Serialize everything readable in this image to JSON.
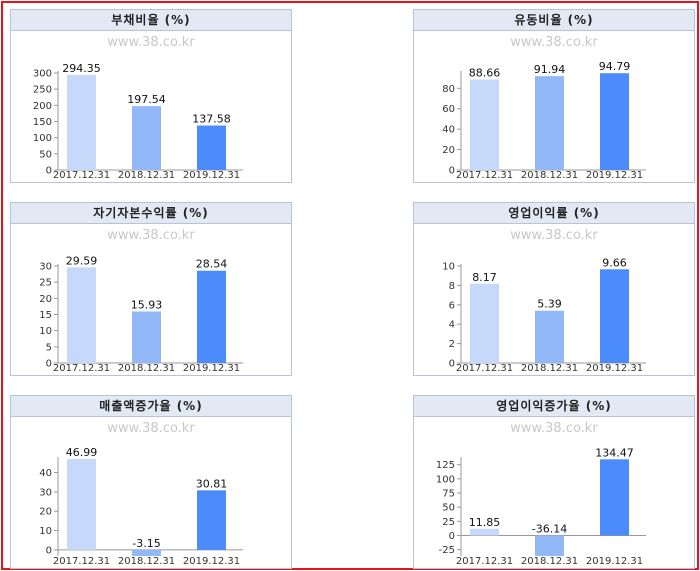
{
  "watermark": "www.38.co.kr",
  "colors": {
    "bar1": "#c6d9fa",
    "bar2": "#93b8f7",
    "bar3": "#4b8bfa",
    "frame": "#e8141b"
  },
  "chart_data": [
    {
      "type": "bar",
      "title": "부채비율 (%)",
      "categories": [
        "2017.12.31",
        "2018.12.31",
        "2019.12.31"
      ],
      "values": [
        294.35,
        197.54,
        137.58
      ],
      "value_labels": [
        "294.35",
        "197.54",
        "137.58"
      ],
      "ylim": [
        0,
        300
      ],
      "yticks": [
        0,
        50,
        100,
        150,
        200,
        250,
        300
      ]
    },
    {
      "type": "bar",
      "title": "유동비율 (%)",
      "categories": [
        "2017.12.31",
        "2018.12.31",
        "2019.12.31"
      ],
      "values": [
        88.66,
        91.94,
        94.79
      ],
      "value_labels": [
        "88.66",
        "91.94",
        "94.79"
      ],
      "ylim": [
        0,
        95
      ],
      "yticks": [
        0,
        20,
        40,
        60,
        80
      ]
    },
    {
      "type": "bar",
      "title": "자기자본수익률 (%)",
      "categories": [
        "2017.12.31",
        "2018.12.31",
        "2019.12.31"
      ],
      "values": [
        29.59,
        15.93,
        28.54
      ],
      "value_labels": [
        "29.59",
        "15.93",
        "28.54"
      ],
      "ylim": [
        0,
        30
      ],
      "yticks": [
        0,
        5,
        10,
        15,
        20,
        25,
        30
      ]
    },
    {
      "type": "bar",
      "title": "영업이익률 (%)",
      "categories": [
        "2017.12.31",
        "2018.12.31",
        "2019.12.31"
      ],
      "values": [
        8.17,
        5.39,
        9.66
      ],
      "value_labels": [
        "8.17",
        "5.39",
        "9.66"
      ],
      "ylim": [
        0,
        10
      ],
      "yticks": [
        0,
        2,
        4,
        6,
        8,
        10
      ]
    },
    {
      "type": "bar",
      "title": "매출액증가율 (%)",
      "categories": [
        "2017.12.31",
        "2018.12.31",
        "2019.12.31"
      ],
      "values": [
        46.99,
        -3.15,
        30.81
      ],
      "value_labels": [
        "46.99",
        "-3.15",
        "30.81"
      ],
      "ylim": [
        -3.15,
        47
      ],
      "yticks": [
        0,
        10,
        20,
        30,
        40
      ]
    },
    {
      "type": "bar",
      "title": "영업이익증가율 (%)",
      "categories": [
        "2017.12.31",
        "2018.12.31",
        "2019.12.31"
      ],
      "values": [
        11.85,
        -36.14,
        134.47
      ],
      "value_labels": [
        "11.85",
        "-36.14",
        "134.47"
      ],
      "ylim": [
        -36.14,
        135
      ],
      "yticks": [
        -25,
        0,
        25,
        50,
        75,
        100,
        125
      ]
    }
  ]
}
